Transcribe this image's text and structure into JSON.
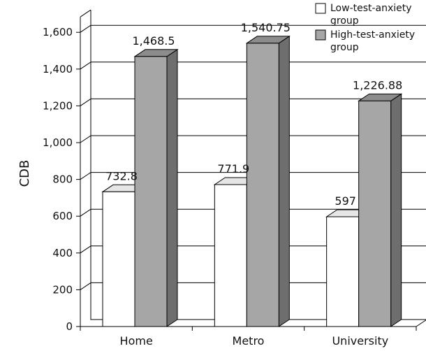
{
  "chart_data": {
    "type": "bar",
    "categories": [
      "Home",
      "Metro",
      "University"
    ],
    "series": [
      {
        "name": "Low-test-anxiety group",
        "values": [
          732.8,
          771.9,
          597
        ],
        "labels": [
          "732.8",
          "771.9",
          "597"
        ],
        "color": "#ffffff"
      },
      {
        "name": "High-test-anxiety group",
        "values": [
          1468.5,
          1540.75,
          1226.88
        ],
        "labels": [
          "1,468.5",
          "1,540.75",
          "1,226.88"
        ],
        "color": "#a6a6a6"
      }
    ],
    "ylabel": "CDB",
    "xlabel": "",
    "ylim": [
      0,
      1600
    ],
    "yticks": [
      "0",
      "200",
      "400",
      "600",
      "800",
      "1,000",
      "1,200",
      "1,400",
      "1,600"
    ],
    "legend": {
      "position": "top-right",
      "entries": [
        {
          "lines": [
            "Low-test-anxiety",
            "group"
          ]
        },
        {
          "lines": [
            "High-test-anxiety",
            "group"
          ]
        }
      ]
    },
    "grid": true
  }
}
